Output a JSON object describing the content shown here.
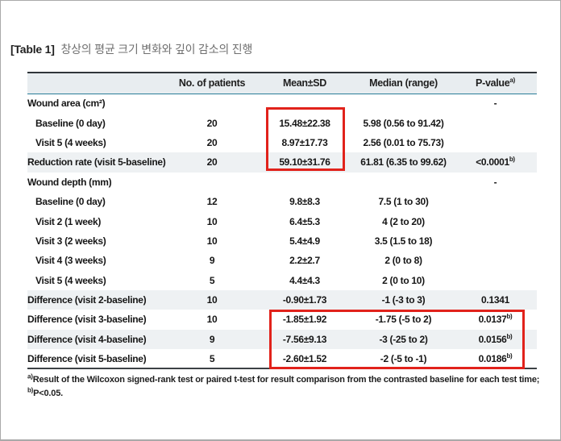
{
  "title": {
    "prefix": "[Table 1]",
    "text": "창상의 평균 크기 변화와 깊이 감소의 진행"
  },
  "table": {
    "columns": [
      "",
      "No. of patients",
      "Mean±SD",
      "Median (range)",
      "P-value"
    ],
    "pvalue_header_sup": "a)",
    "rows": [
      {
        "label": "Wound area (cm²)",
        "indent": false,
        "n": "",
        "mean": "",
        "median": "",
        "p": "-",
        "p_sup": "",
        "shaded": false
      },
      {
        "label": "Baseline (0 day)",
        "indent": true,
        "n": "20",
        "mean": "15.48±22.38",
        "median": "5.98 (0.56 to 91.42)",
        "p": "",
        "p_sup": "",
        "shaded": false
      },
      {
        "label": "Visit 5 (4 weeks)",
        "indent": true,
        "n": "20",
        "mean": "8.97±17.73",
        "median": "2.56 (0.01 to 75.73)",
        "p": "",
        "p_sup": "",
        "shaded": false
      },
      {
        "label": "Reduction rate (visit 5-baseline)",
        "indent": false,
        "n": "20",
        "mean": "59.10±31.76",
        "median": "61.81 (6.35 to 99.62)",
        "p": "<0.0001",
        "p_sup": "b)",
        "shaded": true
      },
      {
        "label": "Wound depth (mm)",
        "indent": false,
        "n": "",
        "mean": "",
        "median": "",
        "p": "-",
        "p_sup": "",
        "shaded": false
      },
      {
        "label": "Baseline (0 day)",
        "indent": true,
        "n": "12",
        "mean": "9.8±8.3",
        "median": "7.5 (1 to 30)",
        "p": "",
        "p_sup": "",
        "shaded": false
      },
      {
        "label": "Visit 2 (1 week)",
        "indent": true,
        "n": "10",
        "mean": "6.4±5.3",
        "median": "4 (2 to 20)",
        "p": "",
        "p_sup": "",
        "shaded": false
      },
      {
        "label": "Visit 3 (2 weeks)",
        "indent": true,
        "n": "10",
        "mean": "5.4±4.9",
        "median": "3.5 (1.5 to 18)",
        "p": "",
        "p_sup": "",
        "shaded": false
      },
      {
        "label": "Visit 4 (3 weeks)",
        "indent": true,
        "n": "9",
        "mean": "2.2±2.7",
        "median": "2 (0 to 8)",
        "p": "",
        "p_sup": "",
        "shaded": false
      },
      {
        "label": "Visit 5 (4 weeks)",
        "indent": true,
        "n": "5",
        "mean": "4.4±4.3",
        "median": "2 (0 to 10)",
        "p": "",
        "p_sup": "",
        "shaded": false
      },
      {
        "label": "Difference (visit 2-baseline)",
        "indent": false,
        "n": "10",
        "mean": "-0.90±1.73",
        "median": "-1 (-3 to 3)",
        "p": "0.1341",
        "p_sup": "",
        "shaded": true
      },
      {
        "label": "Difference (visit 3-baseline)",
        "indent": false,
        "n": "10",
        "mean": "-1.85±1.92",
        "median": "-1.75 (-5 to 2)",
        "p": "0.0137",
        "p_sup": "b)",
        "shaded": false
      },
      {
        "label": "Difference (visit 4-baseline)",
        "indent": false,
        "n": "9",
        "mean": "-7.56±9.13",
        "median": "-3 (-25 to 2)",
        "p": "0.0156",
        "p_sup": "b)",
        "shaded": true
      },
      {
        "label": "Difference (visit 5-baseline)",
        "indent": false,
        "n": "5",
        "mean": "-2.60±1.52",
        "median": "-2 (-5 to -1)",
        "p": "0.0186",
        "p_sup": "b)",
        "shaded": false
      }
    ]
  },
  "footnotes": [
    {
      "sup": "a)",
      "text": "Result of the Wilcoxon signed-rank test or paired t-test for result comparison from the contrasted baseline for each test time;"
    },
    {
      "sup": "b)",
      "text": "P<0.05."
    }
  ],
  "colors": {
    "highlight_box": "#e1221b",
    "header_background": "#e8edf0",
    "shaded_row_background": "#eef1f3",
    "header_rule_teal": "#2b7d99"
  }
}
